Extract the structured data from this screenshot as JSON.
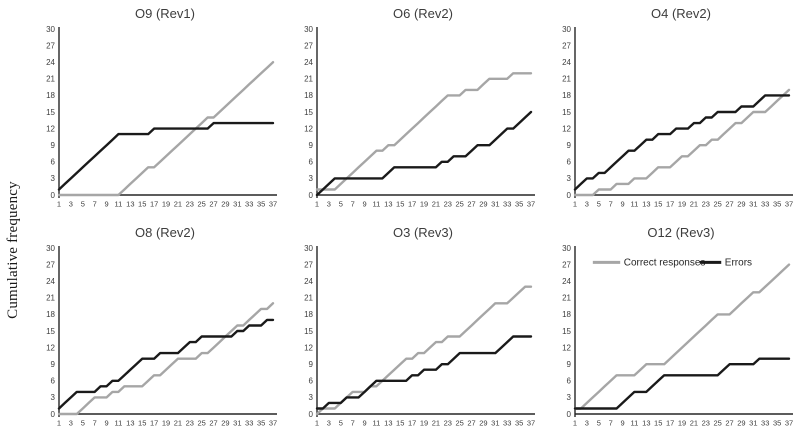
{
  "figure": {
    "ylabel": "Cumulative frequency",
    "colors": {
      "correct": "#a6a6a6",
      "errors": "#1a1a1a",
      "axis": "#262626",
      "tick_text": "#3d3d3d",
      "title_text": "#3d3d3d"
    },
    "legend": {
      "labels": [
        "Correct responses",
        "Errors"
      ],
      "position": "inside-top of O12 (Rev3) panel"
    },
    "ytick_labels": [
      30,
      27,
      24,
      21,
      18,
      15,
      12,
      9,
      6,
      3,
      0
    ],
    "xtick_labels": [
      1,
      3,
      5,
      7,
      9,
      11,
      13,
      15,
      17,
      19,
      21,
      23,
      25,
      27,
      29,
      31,
      33,
      35,
      37
    ]
  },
  "chart_data": [
    {
      "type": "line",
      "title": "O9 (Rev1)",
      "xlim": [
        1,
        37
      ],
      "ylim": [
        0,
        30
      ],
      "grid": false,
      "legend": false,
      "series": [
        {
          "name": "Correct responses",
          "color": "#a6a6a6",
          "values": [
            0,
            0,
            0,
            0,
            0,
            0,
            0,
            0,
            0,
            0,
            0,
            1,
            2,
            3,
            4,
            5,
            5,
            6,
            7,
            8,
            9,
            10,
            11,
            12,
            13,
            14,
            14,
            15,
            16,
            17,
            18,
            19,
            20,
            21,
            22,
            23,
            24
          ]
        },
        {
          "name": "Errors",
          "color": "#1a1a1a",
          "values": [
            1,
            2,
            3,
            4,
            5,
            6,
            7,
            8,
            9,
            10,
            11,
            11,
            11,
            11,
            11,
            11,
            12,
            12,
            12,
            12,
            12,
            12,
            12,
            12,
            12,
            12,
            13,
            13,
            13,
            13,
            13,
            13,
            13,
            13,
            13,
            13,
            13
          ]
        }
      ]
    },
    {
      "type": "line",
      "title": "O6 (Rev2)",
      "xlim": [
        1,
        37
      ],
      "ylim": [
        0,
        30
      ],
      "grid": false,
      "legend": false,
      "series": [
        {
          "name": "Correct responses",
          "color": "#a6a6a6",
          "values": [
            1,
            1,
            1,
            1,
            2,
            3,
            4,
            5,
            6,
            7,
            8,
            8,
            9,
            9,
            10,
            11,
            12,
            13,
            14,
            15,
            16,
            17,
            18,
            18,
            18,
            19,
            19,
            19,
            20,
            21,
            21,
            21,
            21,
            22,
            22,
            22,
            22
          ]
        },
        {
          "name": "Errors",
          "color": "#1a1a1a",
          "values": [
            0,
            1,
            2,
            3,
            3,
            3,
            3,
            3,
            3,
            3,
            3,
            3,
            4,
            5,
            5,
            5,
            5,
            5,
            5,
            5,
            5,
            6,
            6,
            7,
            7,
            7,
            8,
            9,
            9,
            9,
            10,
            11,
            12,
            12,
            13,
            14,
            15
          ]
        }
      ]
    },
    {
      "type": "line",
      "title": "O4 (Rev2)",
      "xlim": [
        1,
        37
      ],
      "ylim": [
        0,
        30
      ],
      "grid": false,
      "legend": false,
      "series": [
        {
          "name": "Correct responses",
          "color": "#a6a6a6",
          "values": [
            0,
            0,
            0,
            0,
            1,
            1,
            1,
            2,
            2,
            2,
            3,
            3,
            3,
            4,
            5,
            5,
            5,
            6,
            7,
            7,
            8,
            9,
            9,
            10,
            10,
            11,
            12,
            13,
            13,
            14,
            15,
            15,
            15,
            16,
            17,
            18,
            19
          ]
        },
        {
          "name": "Errors",
          "color": "#1a1a1a",
          "values": [
            1,
            2,
            3,
            3,
            4,
            4,
            5,
            6,
            7,
            8,
            8,
            9,
            10,
            10,
            11,
            11,
            11,
            12,
            12,
            12,
            13,
            13,
            14,
            14,
            15,
            15,
            15,
            15,
            16,
            16,
            16,
            17,
            18,
            18,
            18,
            18,
            18
          ]
        }
      ]
    },
    {
      "type": "line",
      "title": "O8 (Rev2)",
      "xlim": [
        1,
        37
      ],
      "ylim": [
        0,
        30
      ],
      "grid": false,
      "legend": false,
      "series": [
        {
          "name": "Correct responses",
          "color": "#a6a6a6",
          "values": [
            0,
            0,
            0,
            0,
            1,
            2,
            3,
            3,
            3,
            4,
            4,
            5,
            5,
            5,
            5,
            6,
            7,
            7,
            8,
            9,
            10,
            10,
            10,
            10,
            11,
            11,
            12,
            13,
            14,
            15,
            16,
            16,
            17,
            18,
            19,
            19,
            20
          ]
        },
        {
          "name": "Errors",
          "color": "#1a1a1a",
          "values": [
            1,
            2,
            3,
            4,
            4,
            4,
            4,
            5,
            5,
            6,
            6,
            7,
            8,
            9,
            10,
            10,
            10,
            11,
            11,
            11,
            11,
            12,
            13,
            13,
            14,
            14,
            14,
            14,
            14,
            14,
            15,
            15,
            16,
            16,
            16,
            17,
            17
          ]
        }
      ]
    },
    {
      "type": "line",
      "title": "O3 (Rev3)",
      "xlim": [
        1,
        37
      ],
      "ylim": [
        0,
        30
      ],
      "grid": false,
      "legend": false,
      "series": [
        {
          "name": "Correct responses",
          "color": "#a6a6a6",
          "values": [
            0,
            1,
            1,
            1,
            2,
            3,
            4,
            4,
            4,
            5,
            5,
            6,
            7,
            8,
            9,
            10,
            10,
            11,
            11,
            12,
            13,
            13,
            14,
            14,
            14,
            15,
            16,
            17,
            18,
            19,
            20,
            20,
            20,
            21,
            22,
            23,
            23
          ]
        },
        {
          "name": "Errors",
          "color": "#1a1a1a",
          "values": [
            1,
            1,
            2,
            2,
            2,
            3,
            3,
            3,
            4,
            5,
            6,
            6,
            6,
            6,
            6,
            6,
            7,
            7,
            8,
            8,
            8,
            9,
            9,
            10,
            11,
            11,
            11,
            11,
            11,
            11,
            11,
            12,
            13,
            14,
            14,
            14,
            14
          ]
        }
      ]
    },
    {
      "type": "line",
      "title": "O12 (Rev3)",
      "xlim": [
        1,
        37
      ],
      "ylim": [
        0,
        30
      ],
      "grid": false,
      "legend": true,
      "series": [
        {
          "name": "Correct responses",
          "color": "#a6a6a6",
          "values": [
            1,
            1,
            2,
            3,
            4,
            5,
            6,
            7,
            7,
            7,
            7,
            8,
            9,
            9,
            9,
            9,
            10,
            11,
            12,
            13,
            14,
            15,
            16,
            17,
            18,
            18,
            18,
            19,
            20,
            21,
            22,
            22,
            23,
            24,
            25,
            26,
            27
          ]
        },
        {
          "name": "Errors",
          "color": "#1a1a1a",
          "values": [
            1,
            1,
            1,
            1,
            1,
            1,
            1,
            1,
            2,
            3,
            4,
            4,
            4,
            5,
            6,
            7,
            7,
            7,
            7,
            7,
            7,
            7,
            7,
            7,
            7,
            8,
            9,
            9,
            9,
            9,
            9,
            10,
            10,
            10,
            10,
            10,
            10
          ]
        }
      ]
    }
  ]
}
